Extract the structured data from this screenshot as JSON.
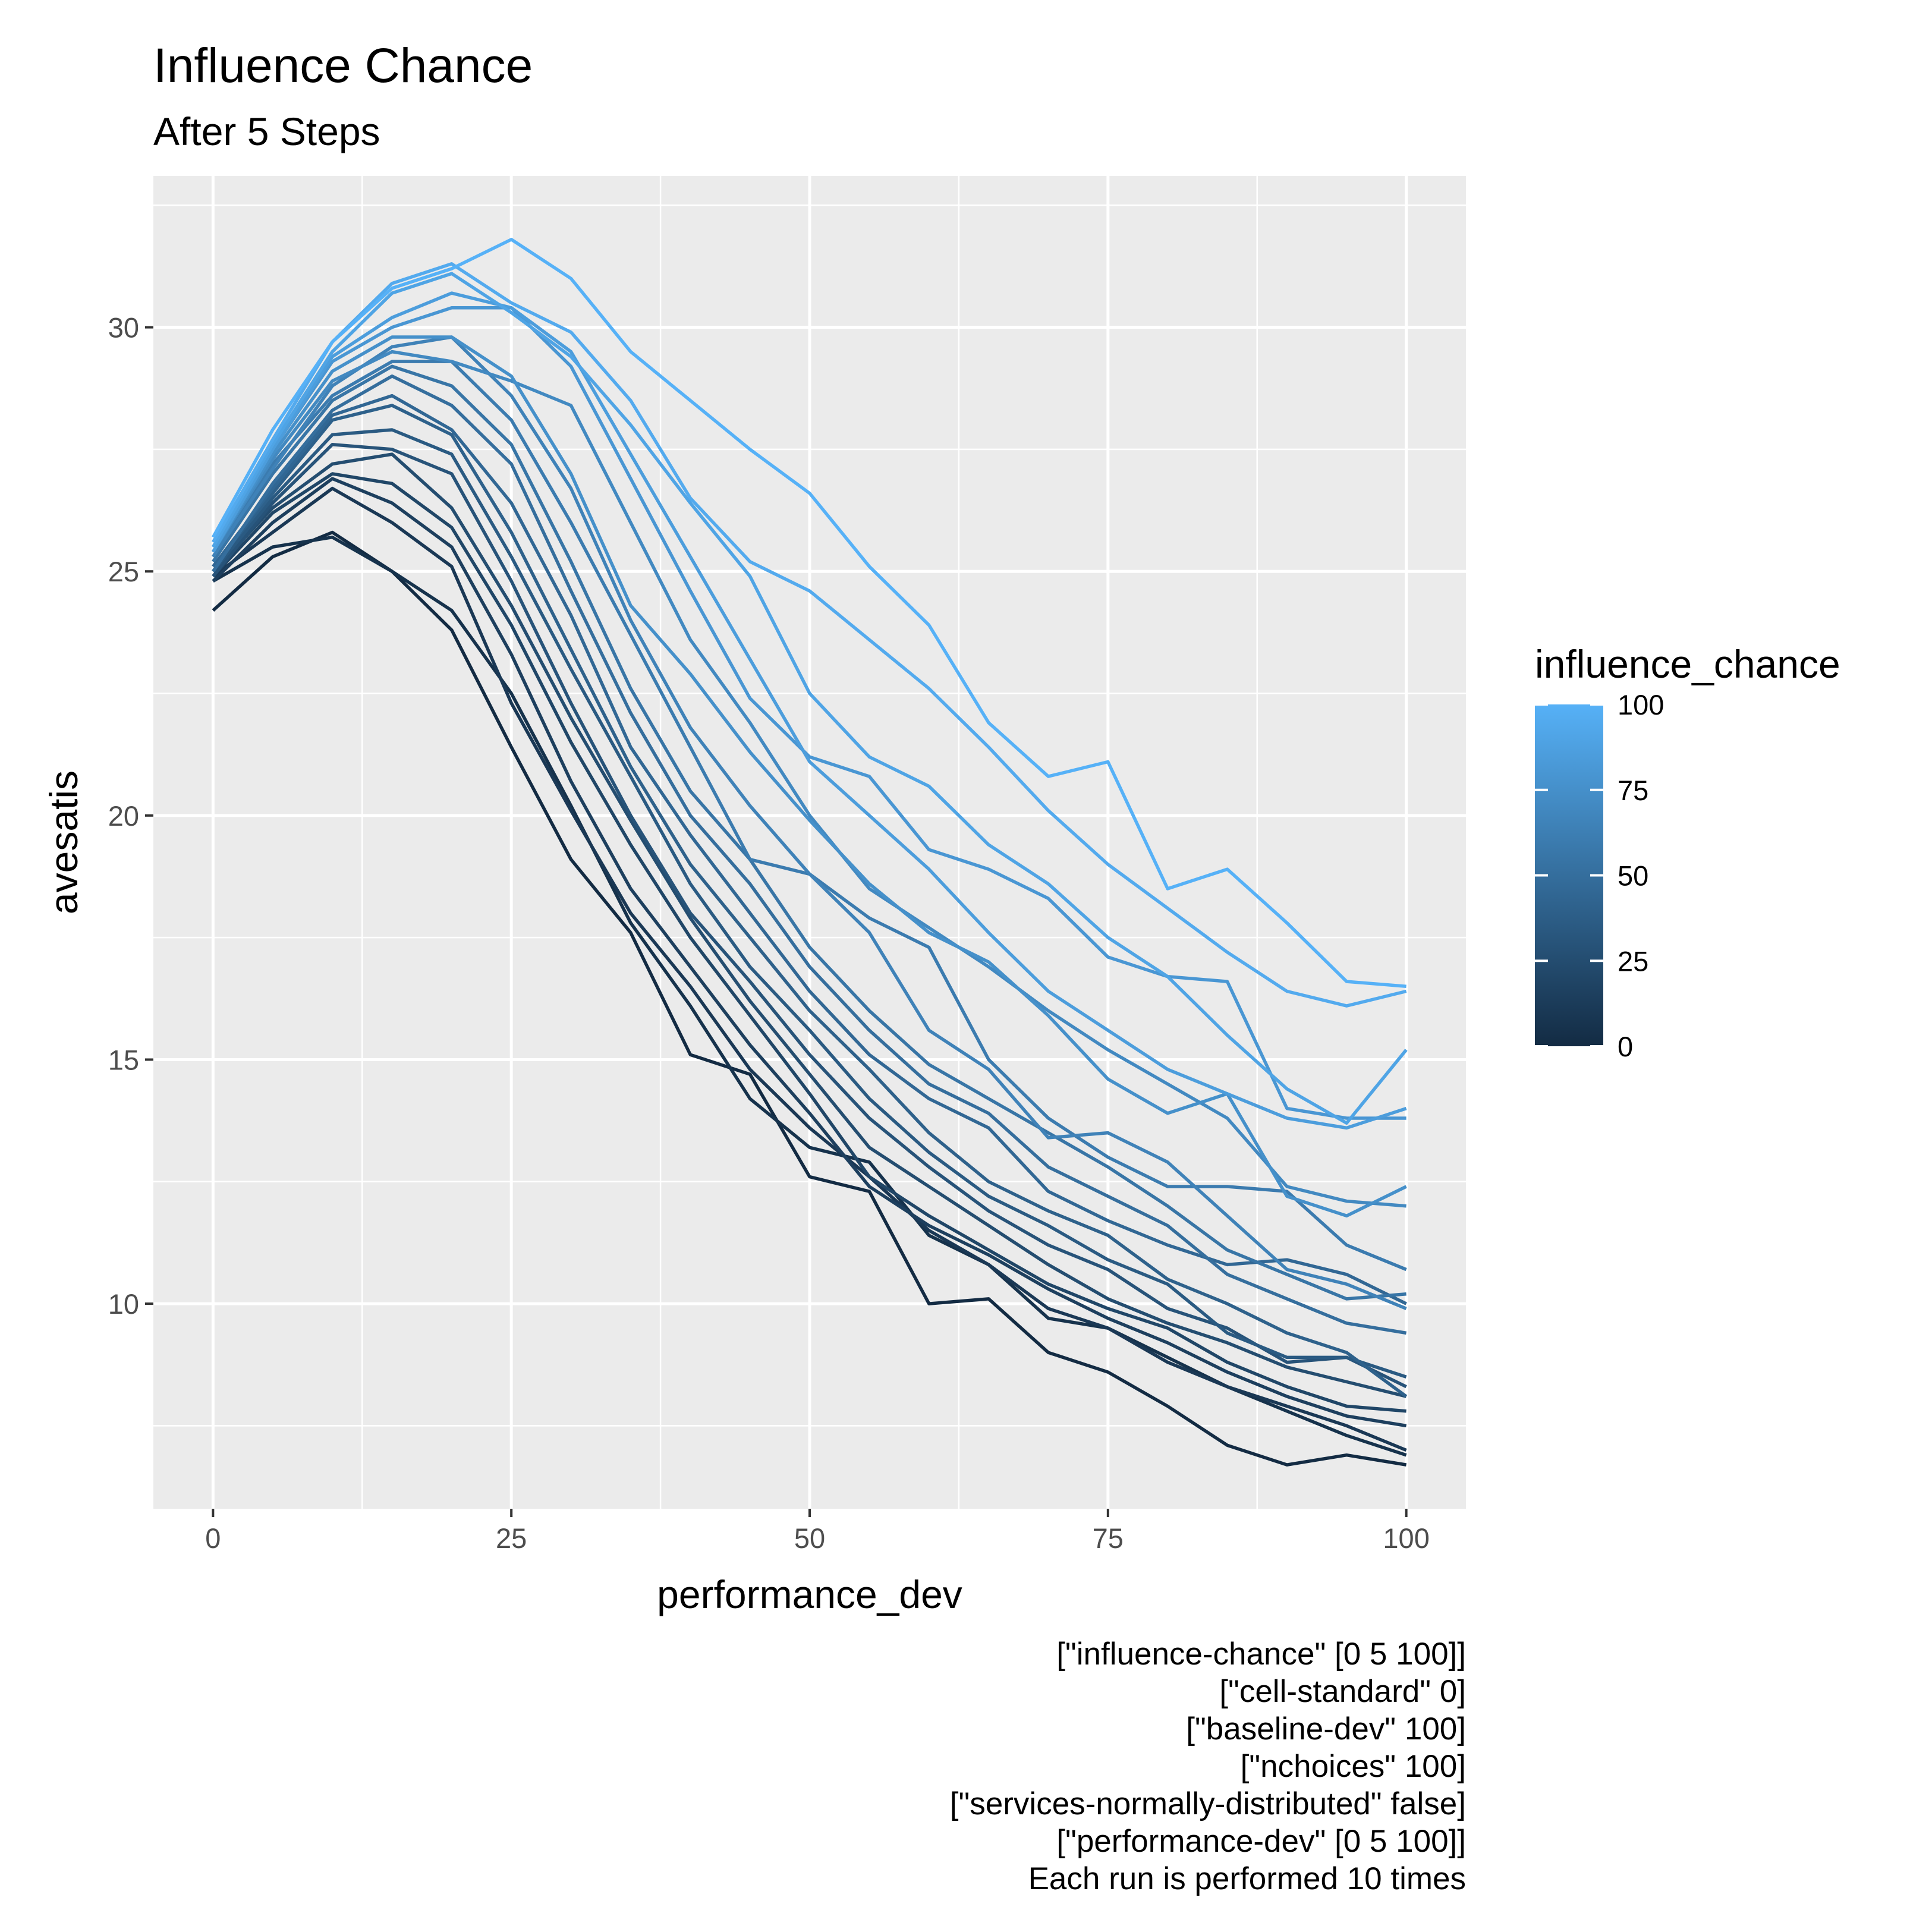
{
  "chart_data": {
    "type": "line",
    "title": "Influence Chance",
    "subtitle": "After 5 Steps",
    "xlabel": "performance_dev",
    "ylabel": "avesatis",
    "x": [
      0,
      5,
      10,
      15,
      20,
      25,
      30,
      35,
      40,
      45,
      50,
      55,
      60,
      65,
      70,
      75,
      80,
      85,
      90,
      95,
      100
    ],
    "xlim": [
      -5,
      105
    ],
    "ylim": [
      5.8,
      33.1
    ],
    "x_ticks": [
      0,
      25,
      50,
      75,
      100
    ],
    "y_ticks": [
      10,
      15,
      20,
      25,
      30
    ],
    "grid": true,
    "legend": {
      "title": "influence_chance",
      "position": "right",
      "type": "colorbar",
      "range": [
        0,
        100
      ],
      "ticks": [
        0,
        25,
        50,
        75,
        100
      ],
      "color_low": "#132B43",
      "color_high": "#56B1F7"
    },
    "series": [
      {
        "influence_chance": 0,
        "values": [
          24.2,
          25.3,
          25.8,
          25.0,
          23.8,
          21.4,
          19.1,
          17.6,
          15.1,
          14.7,
          12.6,
          12.3,
          10.0,
          10.1,
          9.0,
          8.6,
          7.9,
          7.1,
          6.7,
          6.9,
          6.7
        ]
      },
      {
        "influence_chance": 5,
        "values": [
          24.8,
          25.5,
          25.7,
          25.0,
          24.2,
          22.5,
          20.2,
          17.8,
          16.1,
          14.2,
          13.2,
          12.9,
          11.4,
          10.8,
          9.7,
          9.5,
          8.9,
          8.3,
          7.8,
          7.3,
          6.9
        ]
      },
      {
        "influence_chance": 10,
        "values": [
          24.9,
          25.8,
          26.7,
          26.0,
          25.1,
          22.3,
          20.1,
          18.0,
          16.5,
          14.8,
          13.6,
          12.6,
          11.5,
          10.8,
          9.9,
          9.5,
          8.8,
          8.3,
          7.9,
          7.5,
          7.0
        ]
      },
      {
        "influence_chance": 15,
        "values": [
          24.8,
          26.0,
          26.9,
          26.4,
          25.5,
          23.3,
          20.7,
          18.5,
          16.9,
          15.3,
          13.9,
          12.4,
          11.6,
          11.0,
          10.3,
          9.7,
          9.2,
          8.6,
          8.1,
          7.7,
          7.5
        ]
      },
      {
        "influence_chance": 20,
        "values": [
          24.9,
          26.2,
          27.0,
          26.8,
          25.9,
          23.9,
          21.5,
          19.4,
          17.5,
          15.9,
          14.3,
          12.6,
          11.8,
          11.1,
          10.4,
          9.9,
          9.5,
          8.8,
          8.3,
          7.9,
          7.8
        ]
      },
      {
        "influence_chance": 25,
        "values": [
          25.0,
          26.3,
          27.2,
          27.4,
          26.3,
          24.3,
          22.0,
          19.9,
          17.9,
          16.2,
          14.7,
          13.2,
          12.4,
          11.6,
          10.8,
          10.1,
          9.6,
          9.2,
          8.7,
          8.4,
          8.1
        ]
      },
      {
        "influence_chance": 30,
        "values": [
          24.9,
          26.4,
          27.6,
          27.5,
          27.0,
          24.8,
          22.3,
          20.0,
          18.0,
          16.6,
          15.1,
          13.8,
          12.8,
          11.9,
          11.2,
          10.7,
          9.9,
          9.5,
          8.8,
          8.9,
          8.3
        ]
      },
      {
        "influence_chance": 35,
        "values": [
          25.0,
          26.5,
          27.8,
          27.9,
          27.4,
          25.3,
          23.0,
          20.8,
          18.6,
          16.9,
          15.6,
          14.2,
          13.1,
          12.2,
          11.6,
          10.9,
          10.4,
          9.4,
          8.9,
          8.9,
          8.5
        ]
      },
      {
        "influence_chance": 40,
        "values": [
          25.1,
          26.6,
          28.1,
          28.4,
          27.8,
          25.8,
          23.4,
          21.0,
          19.0,
          17.5,
          16.0,
          14.8,
          13.5,
          12.5,
          11.9,
          11.4,
          10.5,
          10.0,
          9.4,
          9.0,
          8.1
        ]
      },
      {
        "influence_chance": 45,
        "values": [
          25.1,
          26.7,
          28.2,
          28.6,
          27.9,
          26.4,
          24.1,
          21.4,
          19.6,
          18.0,
          16.4,
          15.1,
          14.2,
          13.6,
          12.3,
          11.7,
          11.2,
          10.8,
          10.9,
          10.6,
          10.0
        ]
      },
      {
        "influence_chance": 50,
        "values": [
          25.0,
          26.8,
          28.3,
          29.0,
          28.4,
          27.2,
          24.6,
          22.1,
          20.0,
          18.6,
          16.9,
          15.6,
          14.5,
          13.9,
          12.8,
          12.2,
          11.6,
          10.6,
          10.1,
          9.6,
          9.4
        ]
      },
      {
        "influence_chance": 55,
        "values": [
          25.2,
          27.0,
          28.5,
          29.2,
          28.8,
          27.6,
          25.2,
          22.6,
          20.5,
          19.1,
          17.3,
          16.0,
          14.9,
          14.2,
          13.5,
          12.8,
          12.0,
          11.1,
          10.6,
          10.1,
          10.2
        ]
      },
      {
        "influence_chance": 60,
        "values": [
          25.3,
          27.2,
          28.6,
          29.3,
          29.3,
          28.1,
          26.0,
          23.7,
          21.4,
          19.1,
          18.8,
          17.9,
          17.3,
          15.0,
          13.8,
          13.0,
          12.4,
          12.4,
          12.3,
          11.2,
          10.7
        ]
      },
      {
        "influence_chance": 65,
        "values": [
          25.3,
          27.1,
          28.8,
          29.6,
          29.8,
          28.6,
          26.7,
          24.0,
          21.8,
          20.2,
          18.8,
          17.6,
          15.6,
          14.8,
          13.4,
          13.5,
          12.9,
          11.8,
          10.7,
          10.4,
          9.9
        ]
      },
      {
        "influence_chance": 70,
        "values": [
          25.4,
          27.3,
          28.9,
          29.5,
          29.3,
          28.9,
          28.4,
          26.0,
          23.6,
          21.9,
          20.0,
          18.5,
          17.7,
          16.9,
          16.0,
          15.2,
          14.5,
          13.8,
          12.4,
          12.1,
          12.0
        ]
      },
      {
        "influence_chance": 75,
        "values": [
          25.4,
          27.4,
          29.1,
          29.8,
          29.8,
          29.0,
          27.0,
          24.3,
          22.9,
          21.3,
          19.9,
          18.6,
          17.6,
          17.0,
          15.9,
          14.6,
          13.9,
          14.3,
          12.2,
          11.8,
          12.4
        ]
      },
      {
        "influence_chance": 80,
        "values": [
          25.5,
          27.5,
          29.3,
          30.0,
          30.4,
          30.4,
          29.2,
          26.9,
          24.6,
          22.4,
          21.2,
          20.8,
          19.3,
          18.9,
          18.3,
          17.1,
          16.7,
          16.6,
          14.0,
          13.8,
          13.8
        ]
      },
      {
        "influence_chance": 85,
        "values": [
          25.4,
          27.5,
          29.4,
          30.2,
          30.7,
          30.4,
          29.5,
          27.4,
          25.3,
          23.2,
          21.1,
          20.0,
          18.9,
          17.6,
          16.4,
          15.6,
          14.8,
          14.3,
          13.8,
          13.6,
          14.0
        ]
      },
      {
        "influence_chance": 90,
        "values": [
          25.5,
          27.6,
          29.5,
          30.7,
          31.1,
          30.3,
          29.4,
          28.0,
          26.4,
          24.9,
          22.5,
          21.2,
          20.6,
          19.4,
          18.6,
          17.5,
          16.7,
          15.5,
          14.4,
          13.7,
          15.2
        ]
      },
      {
        "influence_chance": 95,
        "values": [
          25.6,
          27.7,
          29.7,
          30.9,
          31.3,
          30.5,
          29.9,
          28.5,
          26.5,
          25.2,
          24.6,
          23.6,
          22.6,
          21.4,
          20.1,
          19.0,
          18.1,
          17.2,
          16.4,
          16.1,
          16.4
        ]
      },
      {
        "influence_chance": 100,
        "values": [
          25.7,
          27.9,
          29.7,
          30.8,
          31.2,
          31.8,
          31.0,
          29.5,
          28.5,
          27.5,
          26.6,
          25.1,
          23.9,
          21.9,
          20.8,
          21.1,
          18.5,
          18.9,
          17.8,
          16.6,
          16.5
        ]
      }
    ],
    "caption_lines": [
      "[\"influence-chance\" [0 5 100]]",
      "[\"cell-standard\" 0]",
      "[\"baseline-dev\" 100]",
      "[\"nchoices\" 100]",
      "[\"services-normally-distributed\" false]",
      "[\"performance-dev\" [0 5 100]]",
      "Each run is performed 10 times"
    ]
  }
}
